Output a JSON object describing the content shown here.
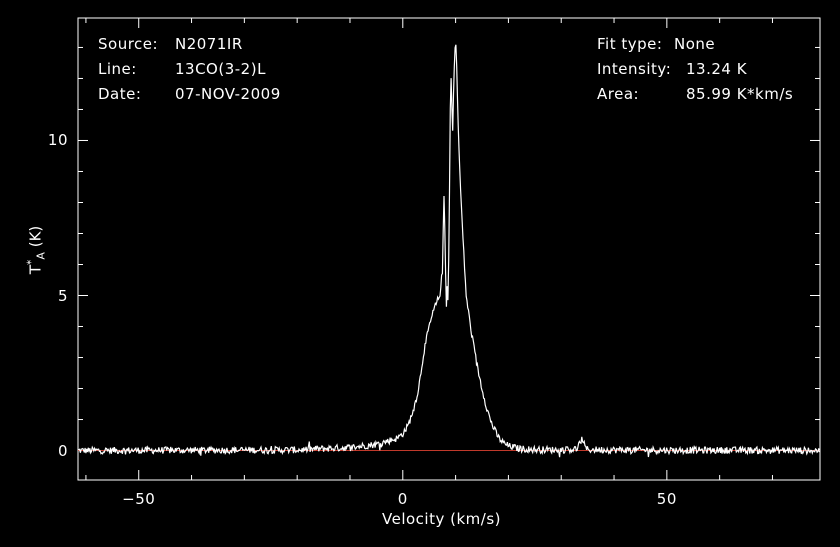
{
  "header": {
    "left": [
      {
        "label": "Source:",
        "value": "N2071IR"
      },
      {
        "label": "Line:",
        "value": "13CO(3-2)L"
      },
      {
        "label": "Date:",
        "value": "07-NOV-2009"
      }
    ],
    "right": [
      {
        "label": "Fit type:",
        "value": "None"
      },
      {
        "label": "Intensity:",
        "value": "13.24 K"
      },
      {
        "label": "Area:",
        "value": "85.99 K*km/s"
      }
    ]
  },
  "chart_data": {
    "type": "line",
    "xlabel": "Velocity (km/s)",
    "ylabel_main": "T",
    "ylabel_sup": "*",
    "ylabel_sub": "A",
    "ylabel_unit": "(K)",
    "xlim": [
      -61.5,
      79
    ],
    "ylim": [
      -0.95,
      13.95
    ],
    "xticks": [
      -50,
      0,
      50
    ],
    "xtick_labels": [
      "−50",
      "0",
      "50"
    ],
    "yticks": [
      0,
      5,
      10
    ],
    "ytick_labels": [
      "0",
      "5",
      "10"
    ],
    "baseline_value": 0,
    "colors": {
      "spectrum": "#ffffff",
      "baseline": "#c0392b",
      "axes": "#ffffff"
    },
    "series": [
      {
        "x": [
          -61.5,
          -20,
          -10,
          -5,
          -3,
          -1,
          0,
          1,
          2,
          3,
          4,
          5,
          6,
          7,
          7.5,
          7.8,
          8.0,
          8.2,
          8.4,
          8.6,
          8.8,
          9.0,
          9.2,
          9.4,
          9.6,
          9.8,
          10.0,
          10.2,
          10.4,
          10.6,
          10.8,
          11.0,
          11.5,
          12,
          13,
          14,
          15,
          16,
          17,
          18,
          19,
          20,
          22,
          25,
          30,
          33,
          34,
          34.5,
          35,
          40,
          50,
          60,
          79
        ],
        "y": [
          0,
          0.02,
          0.1,
          0.2,
          0.3,
          0.4,
          0.55,
          0.8,
          1.3,
          2.0,
          3.2,
          4.0,
          4.6,
          5.0,
          5.8,
          8.2,
          6.8,
          4.7,
          5.2,
          4.7,
          7.5,
          11.0,
          12.3,
          9.8,
          11.5,
          12.8,
          13.24,
          12.5,
          11.0,
          10.0,
          9.0,
          8.2,
          6.5,
          5.0,
          3.8,
          2.8,
          2.0,
          1.3,
          0.8,
          0.45,
          0.25,
          0.15,
          0.06,
          0.03,
          0.02,
          0.05,
          0.4,
          0.1,
          0.03,
          0.02,
          0.01,
          0.01,
          0.0
        ]
      }
    ]
  }
}
